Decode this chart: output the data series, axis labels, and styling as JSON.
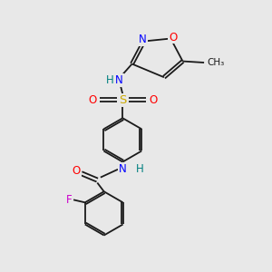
{
  "bg_color": "#e8e8e8",
  "bond_color": "#1a1a1a",
  "atom_colors": {
    "N": "#0000ff",
    "O": "#ff0000",
    "S": "#ccaa00",
    "F": "#cc00cc",
    "C": "#1a1a1a",
    "H": "#008080"
  },
  "lw": 1.3,
  "fs": 8.5
}
